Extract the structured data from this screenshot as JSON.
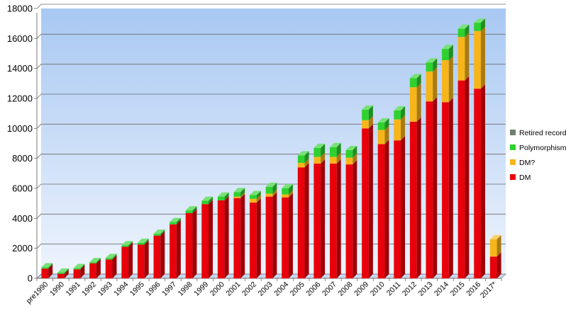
{
  "chart_data": {
    "type": "bar",
    "stacked": true,
    "style": "3d",
    "categories": [
      "pre1990",
      "1990",
      "1991",
      "1992",
      "1993",
      "1994",
      "1995",
      "1996",
      "1997",
      "1998",
      "1999",
      "2000",
      "2001",
      "2002",
      "2003",
      "2004",
      "2005",
      "2006",
      "2007",
      "2008",
      "2009",
      "2010",
      "2011",
      "2012",
      "2013",
      "2014",
      "2015",
      "2016",
      "2017*"
    ],
    "series": [
      {
        "name": "DM",
        "color": "#e8000b",
        "values": [
          650,
          300,
          600,
          1000,
          1250,
          2100,
          2250,
          2850,
          3600,
          4350,
          4950,
          5200,
          5350,
          5050,
          5450,
          5400,
          7400,
          7650,
          7650,
          7600,
          10000,
          8950,
          9200,
          10450,
          11800,
          11750,
          13200,
          12650,
          1450
        ]
      },
      {
        "name": "DM?",
        "color": "#f7b51a",
        "values": [
          0,
          0,
          0,
          0,
          0,
          0,
          0,
          0,
          0,
          0,
          0,
          0,
          100,
          250,
          200,
          200,
          300,
          450,
          450,
          450,
          550,
          950,
          1400,
          2300,
          2000,
          2800,
          2900,
          3850,
          1150
        ]
      },
      {
        "name": "Polymorphisms",
        "color": "#2fd12f",
        "values": [
          80,
          80,
          80,
          80,
          100,
          100,
          120,
          120,
          150,
          180,
          220,
          250,
          300,
          250,
          450,
          400,
          500,
          600,
          650,
          500,
          700,
          500,
          600,
          600,
          600,
          750,
          550,
          550,
          0
        ]
      },
      {
        "name": "Retired records",
        "color": "#6f7f6f",
        "values": [
          0,
          0,
          0,
          0,
          0,
          0,
          0,
          0,
          0,
          0,
          0,
          0,
          0,
          0,
          0,
          0,
          0,
          0,
          0,
          0,
          0,
          0,
          0,
          0,
          0,
          0,
          0,
          0,
          0
        ]
      }
    ],
    "ylim": [
      0,
      18000
    ],
    "yticks": [
      0,
      2000,
      4000,
      6000,
      8000,
      10000,
      12000,
      14000,
      16000,
      18000
    ],
    "ytick_labels": [
      "0",
      "2000",
      "4000",
      "6000",
      "8000",
      "10000",
      "12000",
      "14000",
      "16000",
      "18000"
    ],
    "title": "",
    "xlabel": "",
    "ylabel": "",
    "grid": true,
    "legend_position": "right",
    "legend_order": [
      "Retired records",
      "Polymorphisms",
      "DM?",
      "DM"
    ],
    "background_gradient": [
      "#a8c8f2",
      "#eef4fd"
    ]
  }
}
